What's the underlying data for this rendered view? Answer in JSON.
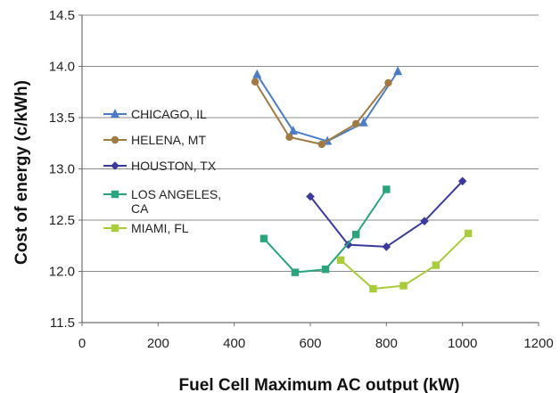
{
  "chart_data": {
    "type": "line",
    "title": "",
    "xlabel": "Fuel Cell Maximum AC output (kW)",
    "ylabel": "Cost of energy (c/kWh)",
    "xlim": [
      0,
      1200
    ],
    "ylim": [
      11.5,
      14.5
    ],
    "xticks": [
      0,
      200,
      400,
      600,
      800,
      1000,
      1200
    ],
    "yticks": [
      "11.5",
      "12.0",
      "12.5",
      "13.0",
      "13.5",
      "14.0",
      "14.5"
    ],
    "grid": "horizontal",
    "legend_position": "left",
    "series": [
      {
        "name": "CHICAGO, IL",
        "color": "#4A7CC7",
        "marker": "triangle",
        "points": [
          [
            460,
            13.92
          ],
          [
            555,
            13.37
          ],
          [
            645,
            13.27
          ],
          [
            740,
            13.45
          ],
          [
            830,
            13.95
          ]
        ]
      },
      {
        "name": "HELENA, MT",
        "color": "#A07A42",
        "marker": "circle",
        "points": [
          [
            455,
            13.85
          ],
          [
            545,
            13.31
          ],
          [
            630,
            13.24
          ],
          [
            720,
            13.44
          ],
          [
            805,
            13.84
          ]
        ]
      },
      {
        "name": "HOUSTON, TX",
        "color": "#3A3A9E",
        "marker": "diamond",
        "points": [
          [
            600,
            12.73
          ],
          [
            700,
            12.26
          ],
          [
            800,
            12.24
          ],
          [
            900,
            12.49
          ],
          [
            1000,
            12.88
          ]
        ]
      },
      {
        "name": "LOS ANGELES,\nCA",
        "color": "#2AA57A",
        "marker": "square",
        "points": [
          [
            478,
            12.32
          ],
          [
            560,
            11.99
          ],
          [
            640,
            12.02
          ],
          [
            720,
            12.36
          ],
          [
            800,
            12.8
          ]
        ]
      },
      {
        "name": "MIAMI, FL",
        "color": "#A9CC3A",
        "marker": "square",
        "points": [
          [
            680,
            12.11
          ],
          [
            765,
            11.83
          ],
          [
            845,
            11.86
          ],
          [
            930,
            12.06
          ],
          [
            1015,
            12.37
          ]
        ]
      }
    ]
  }
}
